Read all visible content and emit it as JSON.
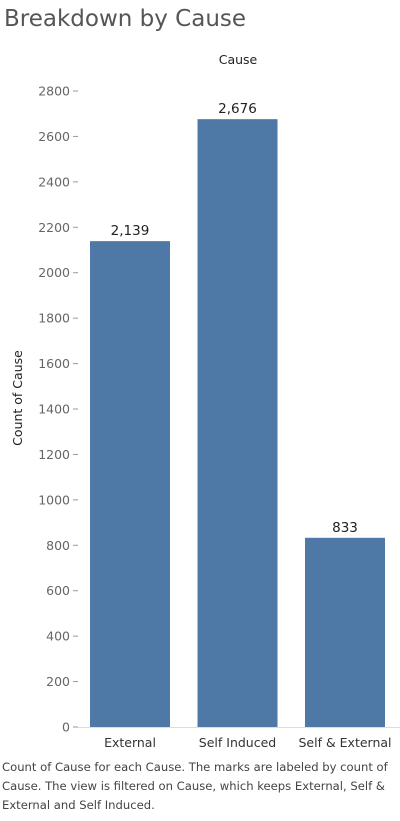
{
  "title": "Breakdown by Cause",
  "caption": "Count of Cause for each Cause.  The marks are labeled by count of Cause. The view is filtered on Cause, which keeps External, Self & External and Self Induced.",
  "colors": {
    "bar": "#4e79a7",
    "axis": "#999999"
  },
  "chart_data": {
    "type": "bar",
    "header": "Cause",
    "ylabel": "Count of Cause",
    "xlabel": "",
    "ylim": [
      0,
      2800
    ],
    "yticks": [
      0,
      200,
      400,
      600,
      800,
      1000,
      1200,
      1400,
      1600,
      1800,
      2000,
      2200,
      2400,
      2600,
      2800
    ],
    "categories": [
      "External",
      "Self Induced",
      "Self & External"
    ],
    "values": [
      2139,
      2676,
      833
    ],
    "data_labels": [
      "2,139",
      "2,676",
      "833"
    ],
    "grid": false
  }
}
